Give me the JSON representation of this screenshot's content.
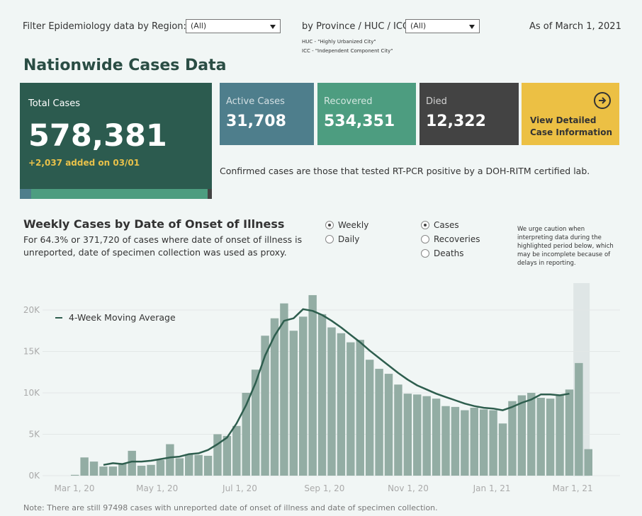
{
  "filters": {
    "region_label": "Filter Epidemiology data by Region:",
    "region_value": "(All)",
    "province_label": "by Province / HUC / ICC:",
    "province_value": "(All)",
    "huc_note": "HUC - \"Highly Urbanized City\"",
    "icc_note": "ICC - \"Independent Component City\"",
    "as_of": "As of March 1, 2021"
  },
  "title": "Nationwide Cases Data",
  "total": {
    "label": "Total Cases",
    "value": "578,381",
    "added": "+2,037 added on 03/01"
  },
  "cards": {
    "active_label": "Active Cases",
    "active_value": "31,708",
    "recovered_label": "Recovered",
    "recovered_value": "534,351",
    "died_label": "Died",
    "died_value": "12,322",
    "detail_line1": "View Detailed",
    "detail_line2": "Case Information"
  },
  "confirmed_note": "Confirmed cases are those that tested RT-PCR positive by a DOH-RITM certified lab.",
  "section": {
    "title": "Weekly Cases by Date of Onset of Illness",
    "sub1": "For 64.3% or 371,720 of cases where date of onset of illness is",
    "sub2": "unreported, date of specimen collection was used as proxy.",
    "freq_options": [
      "Weekly",
      "Daily"
    ],
    "freq_selected": "Weekly",
    "metric_options": [
      "Cases",
      "Recoveries",
      "Deaths"
    ],
    "metric_selected": "Cases",
    "caution": [
      "We urge caution when",
      "interpreting data during the",
      "highlighted period below, which",
      "may be incomplete because of",
      "delays in reporting."
    ]
  },
  "colors": {
    "total_bg": "#2c5b4f",
    "active_bg": "#4e7e8c",
    "recovered_bg": "#4d9d80",
    "died_bg": "#434343",
    "detail_bg": "#ecc044",
    "added": "#e8c14a",
    "bar": "#93ada4",
    "line": "#2e5e4e"
  },
  "chart_data": {
    "type": "bar",
    "legend": "4-Week Moving Average",
    "y_ticks": [
      "20K",
      "15K",
      "10K",
      "5K",
      "0K"
    ],
    "x_ticks": [
      "Mar 1, 20",
      "May 1, 20",
      "Jul 1, 20",
      "Sep 1, 20",
      "Nov 1, 20",
      "Jan 1, 21",
      "Mar 1, 21"
    ],
    "ylim": [
      0,
      21000
    ],
    "bar_values": [
      100,
      2200,
      1700,
      1100,
      1100,
      1500,
      3000,
      1200,
      1300,
      1900,
      3800,
      2100,
      2600,
      2500,
      2400,
      5000,
      4800,
      6000,
      10000,
      12800,
      16900,
      19000,
      20800,
      17500,
      19200,
      21800,
      19500,
      17900,
      17200,
      16100,
      16400,
      14000,
      12900,
      12300,
      11000,
      9900,
      9800,
      9600,
      9300,
      8400,
      8300,
      7900,
      8200,
      8000,
      7900,
      6300,
      9000,
      9700,
      10000,
      9400,
      9300,
      9700,
      10400,
      13600,
      3200
    ],
    "moving_average": [
      null,
      null,
      null,
      1300,
      1500,
      1400,
      1700,
      1700,
      1800,
      2000,
      2200,
      2300,
      2600,
      2700,
      3100,
      3800,
      4600,
      6300,
      8500,
      11200,
      14500,
      16900,
      18700,
      19000,
      20100,
      19900,
      19400,
      18700,
      17900,
      17000,
      16100,
      15100,
      14200,
      13300,
      12400,
      11600,
      10900,
      10400,
      9900,
      9500,
      9100,
      8700,
      8400,
      8200,
      8100,
      7900,
      8300,
      8800,
      9200,
      9800,
      9800,
      9700,
      9900,
      null,
      null
    ],
    "highlight_from_index": 53,
    "footnote": "Note: There are still 97498 cases with unreported date of onset of illness and date of specimen collection."
  }
}
